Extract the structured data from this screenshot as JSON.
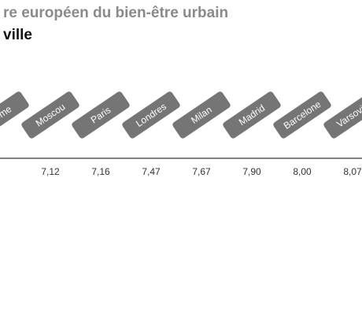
{
  "header": {
    "title": "re européen du bien-être urbain",
    "subtitle": "ville"
  },
  "colors": {
    "tag_fill": "#757575",
    "axis_line": "#555555",
    "title": "#8a8a8a",
    "subtitle": "#111111"
  },
  "chart_data": {
    "type": "table",
    "categories": [
      "Rome",
      "Moscou",
      "Paris",
      "Londres",
      "Milan",
      "Madrid",
      "Barcelone",
      "Varsovie"
    ],
    "values": [
      null,
      7.12,
      7.16,
      7.47,
      7.67,
      7.9,
      8.0,
      8.07
    ],
    "value_labels": [
      "",
      "7,12",
      "7,16",
      "7,47",
      "7,67",
      "7,90",
      "8,00",
      "8,07"
    ],
    "title": "",
    "xlabel": "",
    "ylabel": ""
  }
}
